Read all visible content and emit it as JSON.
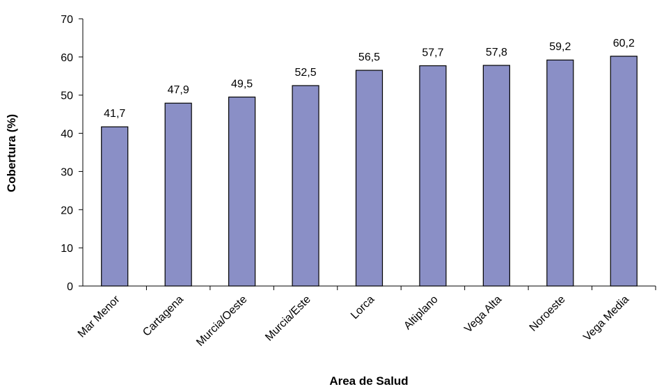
{
  "chart_data": {
    "type": "bar",
    "x_label": "Area de Salud",
    "y_label": "Cobertura (%)",
    "categories": [
      "Mar Menor",
      "Cartagena",
      "Murcia/Oeste",
      "Murcia/Este",
      "Lorca",
      "Altiplano",
      "Vega Alta",
      "Noroeste",
      "Vega Media"
    ],
    "values": [
      41.7,
      47.9,
      49.5,
      52.5,
      56.5,
      57.7,
      57.8,
      59.2,
      60.2
    ],
    "value_labels": [
      "41,7",
      "47,9",
      "49,5",
      "52,5",
      "56,5",
      "57,7",
      "57,8",
      "59,2",
      "60,2"
    ],
    "color": "#8a8fc6",
    "ylim": [
      0,
      70
    ],
    "yticks": [
      0,
      10,
      20,
      30,
      40,
      50,
      60,
      70
    ],
    "grid": false
  }
}
